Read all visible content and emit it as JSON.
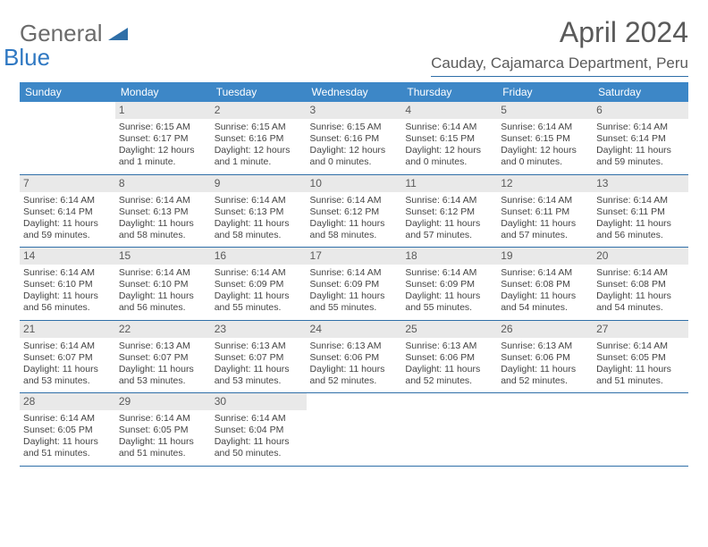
{
  "logo": {
    "line1": "General",
    "line2": "Blue"
  },
  "title": {
    "month": "April 2024",
    "location": "Cauday, Cajamarca Department, Peru"
  },
  "colors": {
    "header_bg": "#3d87c7",
    "header_text": "#ffffff",
    "daynum_bg": "#e9e9e9",
    "rule": "#2f6fa8",
    "logo_gray": "#6b6b6b",
    "logo_blue": "#2f78c2",
    "text": "#444444"
  },
  "daynames": [
    "Sunday",
    "Monday",
    "Tuesday",
    "Wednesday",
    "Thursday",
    "Friday",
    "Saturday"
  ],
  "weeks": [
    [
      null,
      {
        "n": "1",
        "sr": "Sunrise: 6:15 AM",
        "ss": "Sunset: 6:17 PM",
        "d1": "Daylight: 12 hours",
        "d2": "and 1 minute."
      },
      {
        "n": "2",
        "sr": "Sunrise: 6:15 AM",
        "ss": "Sunset: 6:16 PM",
        "d1": "Daylight: 12 hours",
        "d2": "and 1 minute."
      },
      {
        "n": "3",
        "sr": "Sunrise: 6:15 AM",
        "ss": "Sunset: 6:16 PM",
        "d1": "Daylight: 12 hours",
        "d2": "and 0 minutes."
      },
      {
        "n": "4",
        "sr": "Sunrise: 6:14 AM",
        "ss": "Sunset: 6:15 PM",
        "d1": "Daylight: 12 hours",
        "d2": "and 0 minutes."
      },
      {
        "n": "5",
        "sr": "Sunrise: 6:14 AM",
        "ss": "Sunset: 6:15 PM",
        "d1": "Daylight: 12 hours",
        "d2": "and 0 minutes."
      },
      {
        "n": "6",
        "sr": "Sunrise: 6:14 AM",
        "ss": "Sunset: 6:14 PM",
        "d1": "Daylight: 11 hours",
        "d2": "and 59 minutes."
      }
    ],
    [
      {
        "n": "7",
        "sr": "Sunrise: 6:14 AM",
        "ss": "Sunset: 6:14 PM",
        "d1": "Daylight: 11 hours",
        "d2": "and 59 minutes."
      },
      {
        "n": "8",
        "sr": "Sunrise: 6:14 AM",
        "ss": "Sunset: 6:13 PM",
        "d1": "Daylight: 11 hours",
        "d2": "and 58 minutes."
      },
      {
        "n": "9",
        "sr": "Sunrise: 6:14 AM",
        "ss": "Sunset: 6:13 PM",
        "d1": "Daylight: 11 hours",
        "d2": "and 58 minutes."
      },
      {
        "n": "10",
        "sr": "Sunrise: 6:14 AM",
        "ss": "Sunset: 6:12 PM",
        "d1": "Daylight: 11 hours",
        "d2": "and 58 minutes."
      },
      {
        "n": "11",
        "sr": "Sunrise: 6:14 AM",
        "ss": "Sunset: 6:12 PM",
        "d1": "Daylight: 11 hours",
        "d2": "and 57 minutes."
      },
      {
        "n": "12",
        "sr": "Sunrise: 6:14 AM",
        "ss": "Sunset: 6:11 PM",
        "d1": "Daylight: 11 hours",
        "d2": "and 57 minutes."
      },
      {
        "n": "13",
        "sr": "Sunrise: 6:14 AM",
        "ss": "Sunset: 6:11 PM",
        "d1": "Daylight: 11 hours",
        "d2": "and 56 minutes."
      }
    ],
    [
      {
        "n": "14",
        "sr": "Sunrise: 6:14 AM",
        "ss": "Sunset: 6:10 PM",
        "d1": "Daylight: 11 hours",
        "d2": "and 56 minutes."
      },
      {
        "n": "15",
        "sr": "Sunrise: 6:14 AM",
        "ss": "Sunset: 6:10 PM",
        "d1": "Daylight: 11 hours",
        "d2": "and 56 minutes."
      },
      {
        "n": "16",
        "sr": "Sunrise: 6:14 AM",
        "ss": "Sunset: 6:09 PM",
        "d1": "Daylight: 11 hours",
        "d2": "and 55 minutes."
      },
      {
        "n": "17",
        "sr": "Sunrise: 6:14 AM",
        "ss": "Sunset: 6:09 PM",
        "d1": "Daylight: 11 hours",
        "d2": "and 55 minutes."
      },
      {
        "n": "18",
        "sr": "Sunrise: 6:14 AM",
        "ss": "Sunset: 6:09 PM",
        "d1": "Daylight: 11 hours",
        "d2": "and 55 minutes."
      },
      {
        "n": "19",
        "sr": "Sunrise: 6:14 AM",
        "ss": "Sunset: 6:08 PM",
        "d1": "Daylight: 11 hours",
        "d2": "and 54 minutes."
      },
      {
        "n": "20",
        "sr": "Sunrise: 6:14 AM",
        "ss": "Sunset: 6:08 PM",
        "d1": "Daylight: 11 hours",
        "d2": "and 54 minutes."
      }
    ],
    [
      {
        "n": "21",
        "sr": "Sunrise: 6:14 AM",
        "ss": "Sunset: 6:07 PM",
        "d1": "Daylight: 11 hours",
        "d2": "and 53 minutes."
      },
      {
        "n": "22",
        "sr": "Sunrise: 6:13 AM",
        "ss": "Sunset: 6:07 PM",
        "d1": "Daylight: 11 hours",
        "d2": "and 53 minutes."
      },
      {
        "n": "23",
        "sr": "Sunrise: 6:13 AM",
        "ss": "Sunset: 6:07 PM",
        "d1": "Daylight: 11 hours",
        "d2": "and 53 minutes."
      },
      {
        "n": "24",
        "sr": "Sunrise: 6:13 AM",
        "ss": "Sunset: 6:06 PM",
        "d1": "Daylight: 11 hours",
        "d2": "and 52 minutes."
      },
      {
        "n": "25",
        "sr": "Sunrise: 6:13 AM",
        "ss": "Sunset: 6:06 PM",
        "d1": "Daylight: 11 hours",
        "d2": "and 52 minutes."
      },
      {
        "n": "26",
        "sr": "Sunrise: 6:13 AM",
        "ss": "Sunset: 6:06 PM",
        "d1": "Daylight: 11 hours",
        "d2": "and 52 minutes."
      },
      {
        "n": "27",
        "sr": "Sunrise: 6:14 AM",
        "ss": "Sunset: 6:05 PM",
        "d1": "Daylight: 11 hours",
        "d2": "and 51 minutes."
      }
    ],
    [
      {
        "n": "28",
        "sr": "Sunrise: 6:14 AM",
        "ss": "Sunset: 6:05 PM",
        "d1": "Daylight: 11 hours",
        "d2": "and 51 minutes."
      },
      {
        "n": "29",
        "sr": "Sunrise: 6:14 AM",
        "ss": "Sunset: 6:05 PM",
        "d1": "Daylight: 11 hours",
        "d2": "and 51 minutes."
      },
      {
        "n": "30",
        "sr": "Sunrise: 6:14 AM",
        "ss": "Sunset: 6:04 PM",
        "d1": "Daylight: 11 hours",
        "d2": "and 50 minutes."
      },
      null,
      null,
      null,
      null
    ]
  ]
}
